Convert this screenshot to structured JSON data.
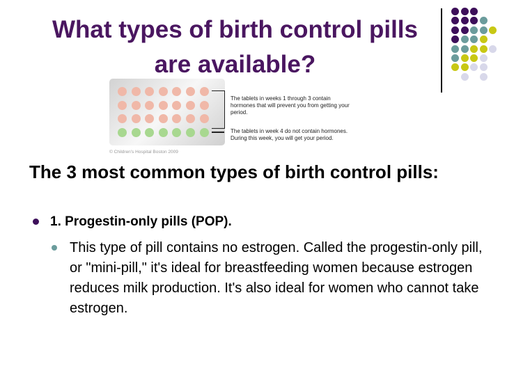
{
  "title": "What types of birth control pills are available?",
  "figure": {
    "note_weeks_1_3": "The tablets in weeks 1 through 3 contain hormones that will prevent you from getting your period.",
    "note_week_4": "The tablets in week 4 do not contain hormones. During this week, you will get your period.",
    "copyright": "© Children's Hospital Boston 2009",
    "colors": {
      "hormone_pill": "#f0b8a8",
      "placebo_pill": "#a8d890"
    }
  },
  "heading": "The 3 most common types of birth control pills:",
  "bullet_1": "1. Progestin-only pills (POP).",
  "sub_bullet_1": "This type of pill contains no estrogen. Called the progestin-only pill, or \"mini-pill,\" it's ideal for breastfeeding women because estrogen reduces milk production. It's also ideal for women who cannot take estrogen.",
  "decoration_colors": {
    "purple": "#3d0f5a",
    "teal": "#6b9c9c",
    "yellow": "#c8c814",
    "lavender": "#d8d8ea"
  }
}
